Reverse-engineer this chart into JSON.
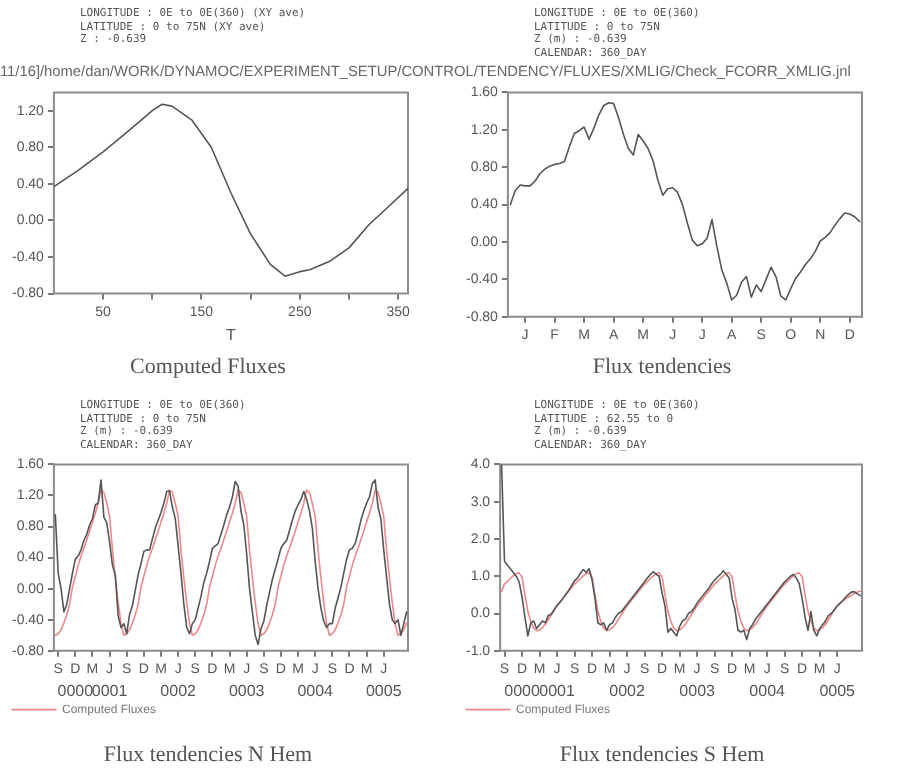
{
  "chart_data": [
    {
      "type": "line",
      "title": "Computed Fluxes",
      "subtitle": "11/16]/home/dan/WORK/DYNAMOC/EXPERIMENT_SETUP/CONTROL/TENDENCY/FLUXES/XMLIG/Check_FCORR_XMLIG.jnl",
      "xlabel": "T",
      "annotations": [
        "LONGITUDE : 0E to 0E(360) (XY ave)",
        "LATITUDE : 0 to 75N (XY ave)",
        "Z : -0.639"
      ],
      "x": [
        0,
        25,
        50,
        75,
        100,
        110,
        120,
        140,
        160,
        180,
        200,
        220,
        235,
        250,
        260,
        280,
        300,
        320,
        340,
        360
      ],
      "series": [
        {
          "color": "#555555",
          "values": [
            0.37,
            0.55,
            0.75,
            0.97,
            1.2,
            1.27,
            1.25,
            1.1,
            0.8,
            0.3,
            -0.15,
            -0.48,
            -0.61,
            -0.56,
            -0.54,
            -0.45,
            -0.3,
            -0.05,
            0.15,
            0.35
          ]
        }
      ],
      "xlim": [
        0,
        360
      ],
      "xticks": [
        50,
        {
          "value": 100,
          "label": null
        },
        150,
        {
          "value": 200,
          "label": null
        },
        250,
        {
          "value": 300,
          "label": null
        },
        350
      ],
      "ylim": [
        -0.8,
        1.4
      ],
      "yticks": [
        {
          "value": -0.8,
          "label": "-0.80"
        },
        {
          "value": -0.4,
          "label": "-0.40"
        },
        {
          "value": 0,
          "label": "0.00"
        },
        {
          "value": 0.4,
          "label": "0.40"
        },
        {
          "value": 0.8,
          "label": "0.80"
        },
        {
          "value": 1.2,
          "label": "1.20"
        }
      ],
      "grid": false,
      "legend": false,
      "marker": "none",
      "line_style": "solid"
    },
    {
      "type": "line",
      "title": "Flux tendencies",
      "subtitle": "LONGITUDE : 0E to 0E(360)\nLATITUDE : 0 to 75N\nZ (m) : -0.639\nCALENDAR: 360_DAY",
      "categories": [
        null,
        null,
        null,
        "J",
        null,
        null,
        null,
        null,
        null,
        "F",
        null,
        null,
        null,
        null,
        null,
        "M",
        null,
        null,
        null,
        null,
        null,
        "A",
        null,
        null,
        null,
        null,
        null,
        "M",
        null,
        null,
        null,
        null,
        null,
        "J",
        null,
        null,
        null,
        null,
        null,
        "J",
        null,
        null,
        null,
        null,
        null,
        "A",
        null,
        null,
        null,
        null,
        null,
        "S",
        null,
        null,
        null,
        null,
        null,
        "O",
        null,
        null,
        null,
        null,
        null,
        "N",
        null,
        null,
        null,
        null,
        null,
        "D",
        null,
        null
      ],
      "series": [
        {
          "color": "#555555",
          "values": [
            0.4,
            0.55,
            0.61,
            0.6,
            0.6,
            0.65,
            0.73,
            0.78,
            0.81,
            0.83,
            0.84,
            0.86,
            1.02,
            1.16,
            1.19,
            1.23,
            1.1,
            1.22,
            1.36,
            1.46,
            1.49,
            1.48,
            1.33,
            1.15,
            1.0,
            0.93,
            1.15,
            1.08,
            1.0,
            0.87,
            0.66,
            0.5,
            0.57,
            0.58,
            0.53,
            0.4,
            0.2,
            0.02,
            -0.04,
            -0.02,
            0.04,
            0.24,
            -0.05,
            -0.3,
            -0.44,
            -0.62,
            -0.57,
            -0.43,
            -0.37,
            -0.59,
            -0.46,
            -0.53,
            -0.4,
            -0.27,
            -0.37,
            -0.58,
            -0.62,
            -0.5,
            -0.39,
            -0.32,
            -0.24,
            -0.18,
            -0.1,
            0.01,
            0.05,
            0.1,
            0.18,
            0.25,
            0.31,
            0.3,
            0.27,
            0.22
          ]
        }
      ],
      "ylim": [
        -0.8,
        1.6
      ],
      "yticks": [
        {
          "value": -0.8,
          "label": "-0.80"
        },
        {
          "value": -0.4,
          "label": "-0.40"
        },
        {
          "value": 0,
          "label": "0.00"
        },
        {
          "value": 0.4,
          "label": "0.40"
        },
        {
          "value": 0.8,
          "label": "0.80"
        },
        {
          "value": 1.2,
          "label": "1.20"
        },
        {
          "value": 1.6,
          "label": "1.60"
        }
      ],
      "grid": false,
      "legend": false,
      "marker": "none",
      "line_style": "solid"
    },
    {
      "type": "line",
      "title": "Flux tendencies N Hem",
      "subtitle": "LONGITUDE : 0E to 0E(360)\nLATITUDE : 0 to 75N\nZ (m) : -0.639\nCALENDAR: 360_DAY",
      "annotations": [
        "0000",
        "0001",
        "0002",
        "0003",
        "0004",
        "0005"
      ],
      "categories": [
        null,
        "S",
        null,
        null,
        null,
        null,
        null,
        "D",
        null,
        null,
        null,
        null,
        null,
        "M",
        null,
        null,
        null,
        null,
        null,
        "J",
        null,
        null,
        null,
        null,
        null,
        "S",
        null,
        null,
        null,
        null,
        null,
        "D",
        null,
        null,
        null,
        null,
        null,
        "M",
        null,
        null,
        null,
        null,
        null,
        "J",
        null,
        null,
        null,
        null,
        null,
        "S",
        null,
        null,
        null,
        null,
        null,
        "D",
        null,
        null,
        null,
        null,
        null,
        "M",
        null,
        null,
        null,
        null,
        null,
        "J",
        null,
        null,
        null,
        null,
        null,
        "S",
        null,
        null,
        null,
        null,
        null,
        "D",
        null,
        null,
        null,
        null,
        null,
        "M",
        null,
        null,
        null,
        null,
        null,
        "J",
        null,
        null,
        null,
        null,
        null,
        "S",
        null,
        null,
        null,
        null,
        null,
        "D",
        null,
        null,
        null,
        null,
        null,
        "M",
        null,
        null,
        null,
        null,
        null,
        "J",
        null,
        null,
        null,
        null,
        null,
        null,
        null,
        null
      ],
      "series": [
        {
          "color": "#555555",
          "values": [
            0.95,
            0.2,
            0.0,
            -0.3,
            -0.2,
            0.0,
            0.2,
            0.38,
            0.42,
            0.5,
            0.62,
            0.7,
            0.82,
            0.9,
            1.08,
            1.1,
            1.4,
            0.92,
            0.85,
            0.6,
            0.3,
            0.18,
            -0.35,
            -0.5,
            -0.45,
            -0.58,
            -0.33,
            -0.22,
            -0.02,
            0.18,
            0.32,
            0.48,
            0.5,
            0.5,
            0.64,
            0.78,
            0.88,
            0.98,
            1.1,
            1.25,
            1.26,
            1.05,
            0.9,
            0.55,
            0.2,
            -0.2,
            -0.5,
            -0.58,
            -0.45,
            -0.4,
            -0.25,
            -0.1,
            0.08,
            0.2,
            0.35,
            0.52,
            0.55,
            0.58,
            0.7,
            0.82,
            0.95,
            1.05,
            1.18,
            1.38,
            1.32,
            1.0,
            0.82,
            0.45,
            0.0,
            -0.3,
            -0.6,
            -0.72,
            -0.52,
            -0.42,
            -0.22,
            -0.05,
            0.12,
            0.25,
            0.38,
            0.52,
            0.58,
            0.62,
            0.75,
            0.88,
            1.0,
            1.08,
            1.15,
            1.25,
            1.15,
            1.0,
            0.78,
            0.35,
            0.0,
            -0.25,
            -0.42,
            -0.5,
            -0.45,
            -0.45,
            -0.25,
            -0.12,
            0.02,
            0.2,
            0.38,
            0.5,
            0.52,
            0.58,
            0.72,
            0.88,
            1.0,
            1.1,
            1.18,
            1.35,
            1.4,
            1.05,
            0.9,
            0.5,
            0.15,
            -0.2,
            -0.4,
            -0.45,
            -0.4,
            -0.6,
            -0.45,
            -0.3
          ]
        },
        {
          "name": "Computed Fluxes",
          "color": "#ee8888",
          "values": [
            -0.6,
            -0.58,
            -0.53,
            -0.44,
            -0.34,
            -0.2,
            0.02,
            0.16,
            0.3,
            0.42,
            0.52,
            0.63,
            0.74,
            0.86,
            0.97,
            1.1,
            1.27,
            1.24,
            1.1,
            0.93,
            0.5,
            0.14,
            -0.18,
            -0.45,
            -0.6,
            -0.58,
            -0.53,
            -0.44,
            -0.34,
            -0.2,
            0.02,
            0.16,
            0.3,
            0.42,
            0.52,
            0.63,
            0.74,
            0.86,
            0.97,
            1.1,
            1.27,
            1.24,
            1.1,
            0.93,
            0.5,
            0.14,
            -0.18,
            -0.45,
            -0.6,
            -0.58,
            -0.53,
            -0.44,
            -0.34,
            -0.2,
            0.02,
            0.16,
            0.3,
            0.42,
            0.52,
            0.63,
            0.74,
            0.86,
            0.97,
            1.1,
            1.27,
            1.24,
            1.1,
            0.93,
            0.5,
            0.14,
            -0.18,
            -0.45,
            -0.6,
            -0.58,
            -0.53,
            -0.44,
            -0.34,
            -0.2,
            0.02,
            0.16,
            0.3,
            0.42,
            0.52,
            0.63,
            0.74,
            0.86,
            0.97,
            1.1,
            1.27,
            1.24,
            1.1,
            0.93,
            0.5,
            0.14,
            -0.18,
            -0.45,
            -0.6,
            -0.58,
            -0.53,
            -0.44,
            -0.34,
            -0.2,
            0.02,
            0.16,
            0.3,
            0.42,
            0.52,
            0.63,
            0.74,
            0.86,
            0.97,
            1.1,
            1.27,
            1.24,
            1.1,
            0.93,
            0.5,
            0.14,
            -0.18,
            -0.45,
            -0.6,
            -0.58,
            -0.53,
            -0.44
          ]
        }
      ],
      "ylim": [
        -0.8,
        1.6
      ],
      "yticks": [
        {
          "value": -0.8,
          "label": "-0.80"
        },
        {
          "value": -0.4,
          "label": "-0.40"
        },
        {
          "value": 0,
          "label": "0.00"
        },
        {
          "value": 0.4,
          "label": "0.40"
        },
        {
          "value": 0.8,
          "label": "0.80"
        },
        {
          "value": 1.2,
          "label": "1.20"
        },
        {
          "value": 1.6,
          "label": "1.60"
        }
      ],
      "grid": false,
      "legend": "bottom left",
      "marker": "none",
      "line_style": "solid"
    },
    {
      "type": "line",
      "title": "Flux tendencies S Hem",
      "subtitle": "LONGITUDE : 0E to 0E(360)\nLATITUDE : 62.55 to 0\nZ (m) : -0.639\nCALENDAR: 360_DAY",
      "annotations": [
        "0000",
        "0001",
        "0002",
        "0003",
        "0004",
        "0005"
      ],
      "categories": [
        null,
        "S",
        null,
        null,
        null,
        null,
        null,
        "D",
        null,
        null,
        null,
        null,
        null,
        "M",
        null,
        null,
        null,
        null,
        null,
        "J",
        null,
        null,
        null,
        null,
        null,
        "S",
        null,
        null,
        null,
        null,
        null,
        "D",
        null,
        null,
        null,
        null,
        null,
        "M",
        null,
        null,
        null,
        null,
        null,
        "J",
        null,
        null,
        null,
        null,
        null,
        "S",
        null,
        null,
        null,
        null,
        null,
        "D",
        null,
        null,
        null,
        null,
        null,
        "M",
        null,
        null,
        null,
        null,
        null,
        "J",
        null,
        null,
        null,
        null,
        null,
        "S",
        null,
        null,
        null,
        null,
        null,
        "D",
        null,
        null,
        null,
        null,
        null,
        "M",
        null,
        null,
        null,
        null,
        null,
        "J",
        null,
        null,
        null,
        null,
        null,
        "S",
        null,
        null,
        null,
        null,
        null,
        "D",
        null,
        null,
        null,
        null,
        null,
        "M",
        null,
        null,
        null,
        null,
        null,
        "J",
        null,
        null,
        null,
        null,
        null,
        null,
        null,
        null
      ],
      "series": [
        {
          "color": "#555555",
          "values": [
            4.0,
            1.4,
            1.3,
            1.2,
            1.1,
            1.0,
            0.85,
            0.45,
            -0.1,
            -0.6,
            -0.25,
            -0.2,
            -0.4,
            -0.3,
            -0.2,
            -0.25,
            -0.05,
            -0.02,
            0.1,
            0.22,
            0.3,
            0.4,
            0.52,
            0.62,
            0.75,
            0.88,
            0.95,
            1.08,
            1.18,
            1.1,
            1.2,
            0.9,
            0.4,
            -0.25,
            -0.3,
            -0.25,
            -0.45,
            -0.3,
            -0.25,
            -0.1,
            0.0,
            0.05,
            0.15,
            0.25,
            0.35,
            0.45,
            0.55,
            0.65,
            0.75,
            0.85,
            0.95,
            1.05,
            1.12,
            1.05,
            1.0,
            0.55,
            0.2,
            -0.5,
            -0.4,
            -0.5,
            -0.6,
            -0.35,
            -0.2,
            -0.15,
            0.0,
            0.05,
            0.15,
            0.28,
            0.38,
            0.48,
            0.58,
            0.68,
            0.8,
            0.9,
            0.98,
            1.05,
            1.15,
            1.05,
            0.95,
            0.4,
            0.1,
            -0.45,
            -0.5,
            -0.45,
            -0.7,
            -0.4,
            -0.3,
            -0.15,
            -0.05,
            0.05,
            0.15,
            0.25,
            0.35,
            0.45,
            0.55,
            0.65,
            0.75,
            0.85,
            0.92,
            1.0,
            1.05,
            0.95,
            0.8,
            0.4,
            -0.1,
            -0.45,
            0.05,
            -0.45,
            -0.6,
            -0.4,
            -0.3,
            -0.2,
            -0.05,
            0.0,
            0.1,
            0.2,
            0.28,
            0.35,
            0.45,
            0.52,
            0.58,
            0.58,
            0.52,
            0.48
          ]
        },
        {
          "name": "Computed Fluxes",
          "color": "#ee8888",
          "values": [
            0.6,
            0.79,
            0.86,
            0.94,
            1.01,
            1.07,
            1.09,
            0.98,
            0.5,
            0.06,
            -0.21,
            -0.39,
            -0.46,
            -0.44,
            -0.38,
            -0.29,
            -0.16,
            -0.04,
            0.09,
            0.2,
            0.3,
            0.4,
            0.5,
            0.6,
            0.7,
            0.79,
            0.86,
            0.94,
            1.01,
            1.07,
            1.09,
            0.98,
            0.5,
            0.06,
            -0.21,
            -0.39,
            -0.46,
            -0.44,
            -0.38,
            -0.29,
            -0.16,
            -0.04,
            0.09,
            0.2,
            0.3,
            0.4,
            0.5,
            0.6,
            0.7,
            0.79,
            0.86,
            0.94,
            1.01,
            1.07,
            1.09,
            0.98,
            0.5,
            0.06,
            -0.21,
            -0.39,
            -0.46,
            -0.44,
            -0.38,
            -0.29,
            -0.16,
            -0.04,
            0.09,
            0.2,
            0.3,
            0.4,
            0.5,
            0.6,
            0.7,
            0.79,
            0.86,
            0.94,
            1.01,
            1.07,
            1.09,
            0.98,
            0.5,
            0.06,
            -0.21,
            -0.39,
            -0.46,
            -0.44,
            -0.38,
            -0.29,
            -0.16,
            -0.04,
            0.09,
            0.2,
            0.3,
            0.4,
            0.5,
            0.6,
            0.7,
            0.79,
            0.86,
            0.94,
            1.01,
            1.07,
            1.09,
            0.98,
            0.5,
            0.06,
            -0.21,
            -0.39,
            -0.46,
            -0.44,
            -0.38,
            -0.29,
            -0.16,
            -0.04,
            0.09,
            0.2,
            0.28,
            0.35,
            0.4,
            0.45,
            0.5,
            0.54,
            0.58,
            0.6
          ]
        }
      ],
      "ylim": [
        -1,
        4
      ],
      "yticks": [
        {
          "value": -1,
          "label": "-1.0"
        },
        {
          "value": 0,
          "label": "0.0"
        },
        {
          "value": 1,
          "label": "1.0"
        },
        {
          "value": 2,
          "label": "2.0"
        },
        {
          "value": 3,
          "label": "3.0"
        },
        {
          "value": 4,
          "label": "4.0"
        }
      ],
      "grid": false,
      "legend": "bottom left",
      "marker": "none",
      "line_style": "solid"
    }
  ]
}
